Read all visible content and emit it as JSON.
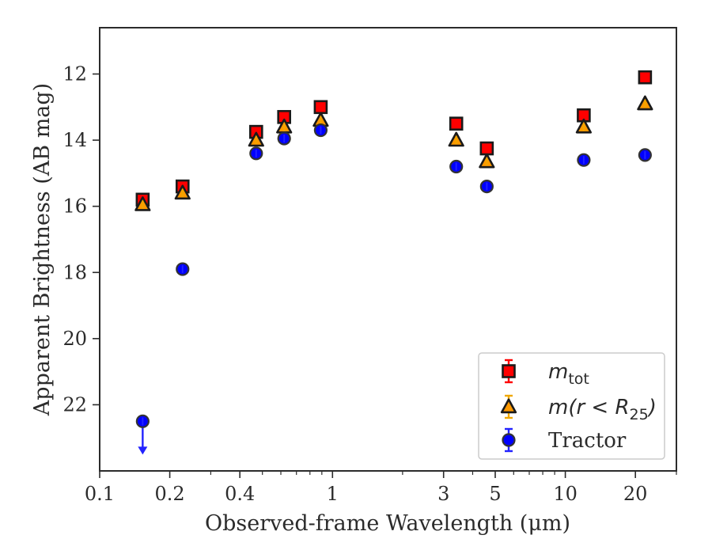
{
  "chart_data": {
    "type": "scatter",
    "xlabel": "Observed-frame Wavelength (μm)",
    "ylabel": "Apparent Brightness (AB mag)",
    "x_scale": "log",
    "xlim": [
      0.1,
      30
    ],
    "ylim": [
      24,
      10.6
    ],
    "y_inverted": true,
    "x_ticks": [
      {
        "value": 0.1,
        "label": "0.1"
      },
      {
        "value": 0.2,
        "label": "0.2"
      },
      {
        "value": 0.4,
        "label": "0.4"
      },
      {
        "value": 1,
        "label": "1"
      },
      {
        "value": 3,
        "label": "3"
      },
      {
        "value": 5,
        "label": "5"
      },
      {
        "value": 10,
        "label": "10"
      },
      {
        "value": 20,
        "label": "20"
      }
    ],
    "y_ticks": [
      {
        "value": 12,
        "label": "12"
      },
      {
        "value": 14,
        "label": "14"
      },
      {
        "value": 16,
        "label": "16"
      },
      {
        "value": 18,
        "label": "18"
      },
      {
        "value": 20,
        "label": "20"
      },
      {
        "value": 22,
        "label": "22"
      }
    ],
    "grid": false,
    "legend": {
      "position": "lower-right"
    },
    "series": [
      {
        "name": "m_tot",
        "legend_label": {
          "base": "m",
          "sub": "tot"
        },
        "marker": "square",
        "color": "#ff0000",
        "edge_color": "#1a1a1a",
        "error_color": "#ff0000",
        "x": [
          0.153,
          0.227,
          0.47,
          0.62,
          0.89,
          3.4,
          4.6,
          12.0,
          22.0
        ],
        "y": [
          15.8,
          15.4,
          13.75,
          13.3,
          13.0,
          13.5,
          14.25,
          13.25,
          12.1
        ]
      },
      {
        "name": "m(r < R_25)",
        "legend_label": {
          "base": "m(r < R",
          "sub": "25",
          "tail": ")"
        },
        "marker": "triangle",
        "color": "#ff9900",
        "edge_color": "#1a1a1a",
        "error_color": "#f0a800",
        "x": [
          0.153,
          0.227,
          0.47,
          0.62,
          0.89,
          3.4,
          4.6,
          12.0,
          22.0
        ],
        "y": [
          15.95,
          15.6,
          14.0,
          13.6,
          13.4,
          14.0,
          14.65,
          13.6,
          12.9
        ]
      },
      {
        "name": "Tractor",
        "legend_label": {
          "base": "Tractor"
        },
        "marker": "circle",
        "color": "#0000ff",
        "edge_color": "#333333",
        "error_color": "#2222ff",
        "x": [
          0.153,
          0.227,
          0.47,
          0.62,
          0.89,
          3.4,
          4.6,
          12.0,
          22.0
        ],
        "y": [
          22.5,
          17.9,
          14.4,
          13.95,
          13.7,
          14.8,
          15.4,
          14.6,
          14.45
        ],
        "upper_limit_x": [
          0.153
        ]
      }
    ]
  }
}
